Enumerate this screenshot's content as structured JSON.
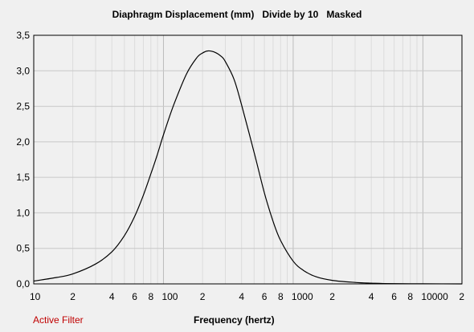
{
  "window": {
    "status_label": "Active Filter"
  },
  "chart_data": {
    "type": "line",
    "title": "Diaphragm Displacement (mm)   Divide by 10   Masked",
    "xlabel": "Frequency (hertz)",
    "ylabel": "",
    "xscale": "log",
    "xlim": [
      10,
      20000
    ],
    "ylim": [
      0,
      3.5
    ],
    "grid": true,
    "y_ticks": [
      "0,0",
      "0,5",
      "1,0",
      "1,5",
      "2,0",
      "2,5",
      "3,0",
      "3,5"
    ],
    "y_tick_values": [
      0,
      0.5,
      1.0,
      1.5,
      2.0,
      2.5,
      3.0,
      3.5
    ],
    "x_ticks": [
      {
        "value": 10,
        "label": "10"
      },
      {
        "value": 20,
        "label": "2"
      },
      {
        "value": 40,
        "label": "4"
      },
      {
        "value": 60,
        "label": "6"
      },
      {
        "value": 80,
        "label": "8"
      },
      {
        "value": 100,
        "label": "100"
      },
      {
        "value": 200,
        "label": "2"
      },
      {
        "value": 400,
        "label": "4"
      },
      {
        "value": 600,
        "label": "6"
      },
      {
        "value": 800,
        "label": "8"
      },
      {
        "value": 1000,
        "label": "1000"
      },
      {
        "value": 2000,
        "label": "2"
      },
      {
        "value": 4000,
        "label": "4"
      },
      {
        "value": 6000,
        "label": "6"
      },
      {
        "value": 8000,
        "label": "8"
      },
      {
        "value": 10000,
        "label": "10000"
      },
      {
        "value": 20000,
        "label": "2"
      }
    ],
    "series": [
      {
        "color": "#000000",
        "x": [
          10,
          15,
          20,
          30,
          40,
          50,
          60,
          70,
          80,
          90,
          100,
          120,
          150,
          180,
          200,
          220,
          250,
          280,
          300,
          350,
          400,
          500,
          600,
          700,
          800,
          1000,
          1200,
          1500,
          2000,
          3000,
          4000,
          5000,
          8000,
          10000,
          20000
        ],
        "y": [
          0.04,
          0.09,
          0.14,
          0.28,
          0.45,
          0.68,
          0.95,
          1.25,
          1.55,
          1.83,
          2.1,
          2.52,
          2.95,
          3.18,
          3.25,
          3.28,
          3.26,
          3.2,
          3.13,
          2.88,
          2.52,
          1.85,
          1.28,
          0.88,
          0.61,
          0.32,
          0.19,
          0.1,
          0.05,
          0.02,
          0.01,
          0.005,
          0.002,
          0.001,
          0.0
        ]
      }
    ]
  }
}
